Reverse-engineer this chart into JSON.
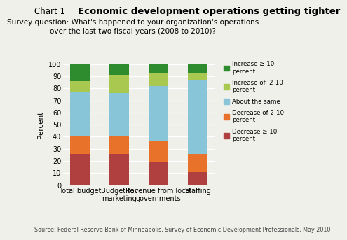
{
  "categories": [
    "Total budget",
    "Budget for\nmarketing",
    "Revenue from local\ngovernments",
    "Staffing"
  ],
  "series": [
    {
      "label": "Decrease ≥ 10\npercent",
      "color": "#b04040",
      "values": [
        26,
        26,
        19,
        11
      ]
    },
    {
      "label": "Decrease of 2-10\npercent",
      "color": "#e8722a",
      "values": [
        15,
        15,
        18,
        15
      ]
    },
    {
      "label": "About the same",
      "color": "#88c5d8",
      "values": [
        36,
        35,
        45,
        61
      ]
    },
    {
      "label": "Increase of  2-10\npercent",
      "color": "#a8c850",
      "values": [
        9,
        15,
        10,
        6
      ]
    },
    {
      "label": "Increase ≥ 10\npercent",
      "color": "#2e8b2e",
      "values": [
        14,
        9,
        8,
        7
      ]
    }
  ],
  "title": "Economic development operations getting tighter",
  "chart_label": "Chart 1",
  "subtitle": "Survey question: What's happened to your organization's operations\nover the last two fiscal years (2008 to 2010)?",
  "ylabel": "Percent",
  "ylim": [
    0,
    100
  ],
  "yticks": [
    0,
    10,
    20,
    30,
    40,
    50,
    60,
    70,
    80,
    90,
    100
  ],
  "source": "Source: Federal Reserve Bank of Minneapolis, Survey of Economic Development Professionals, May 2010",
  "background_color": "#f0f0eb",
  "bar_width": 0.5
}
